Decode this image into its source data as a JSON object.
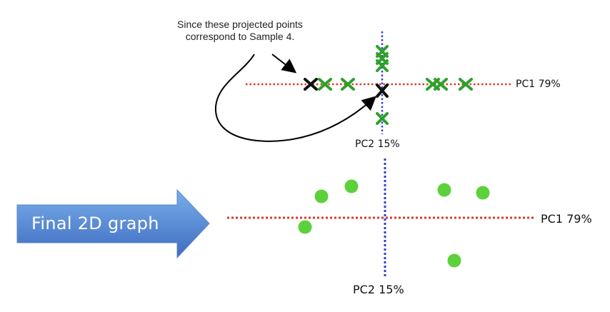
{
  "annotation": {
    "line1": "Since these projected points",
    "line2": "correspond to Sample 4."
  },
  "top_graph": {
    "pc1_label": "PC1 79%",
    "pc2_label": "PC2 15%",
    "pc1_line_color": "#d93a2b",
    "pc2_line_color": "#2f3fd0",
    "projection_marker_color": "#2ea12a",
    "sample4_marker_color": "#111111"
  },
  "bottom_graph": {
    "pc1_label": "PC1 79%",
    "pc2_label": "PC2 15%",
    "point_color": "#5cd13b"
  },
  "arrow": {
    "label": "Final 2D graph",
    "color_top": "#6fa3e6",
    "color_bottom": "#3f6fc2"
  }
}
